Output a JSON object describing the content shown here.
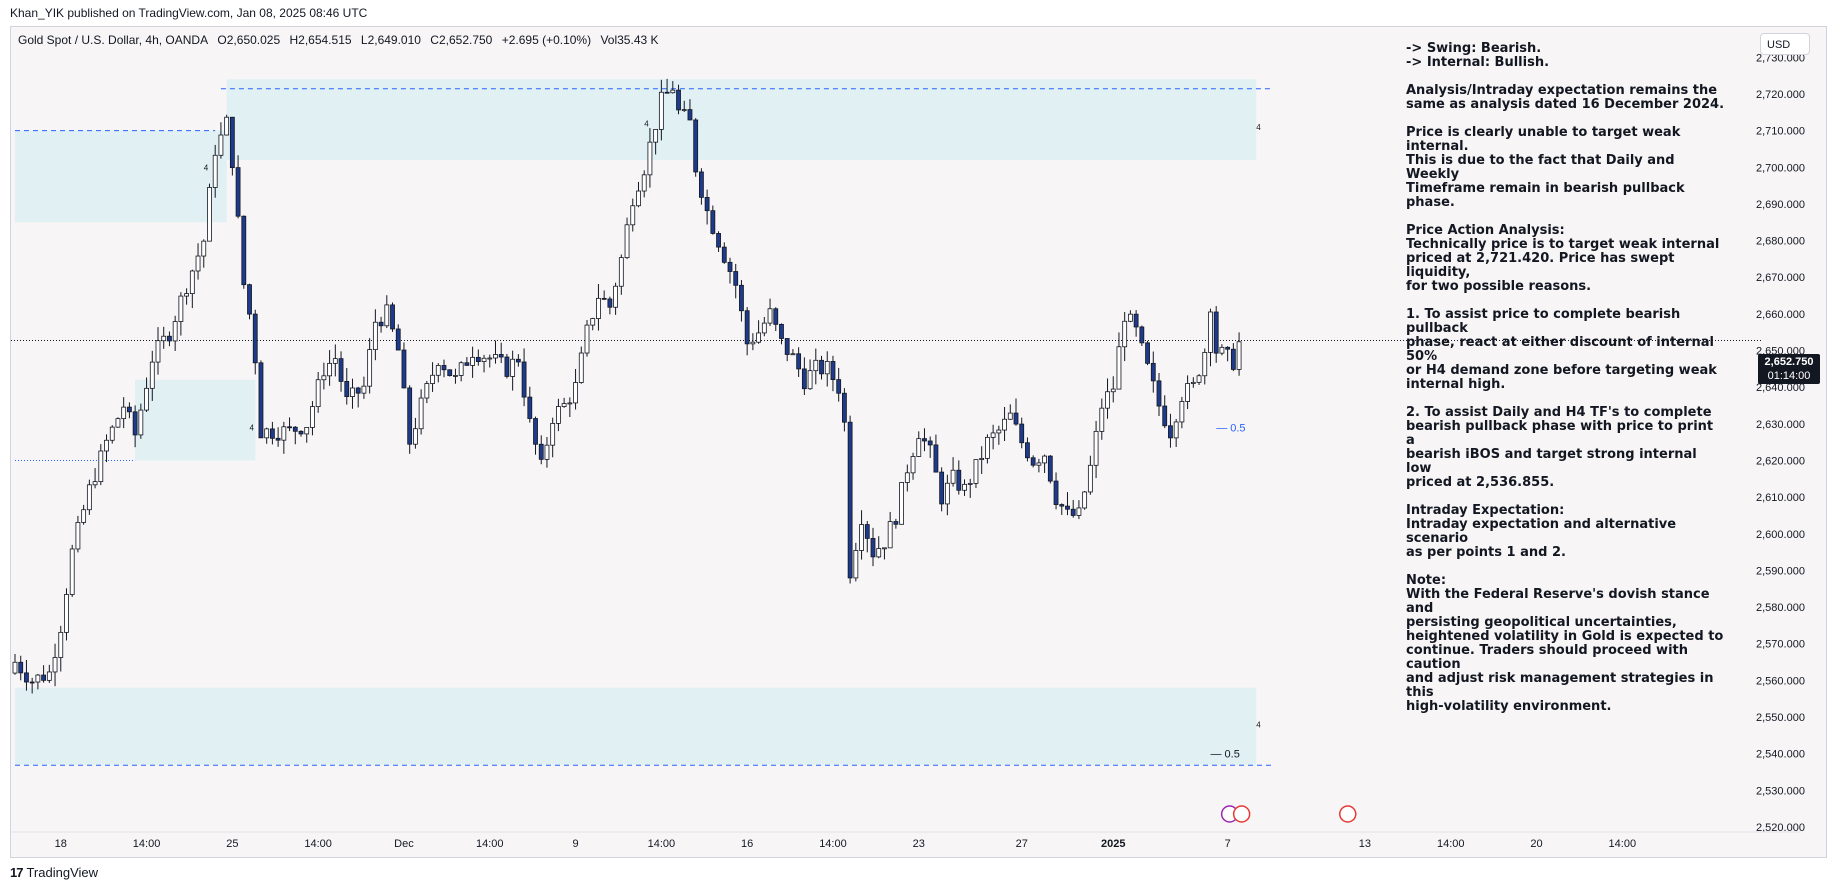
{
  "header": {
    "publisher": "Khan_YIK published on TradingView.com, Jan 08, 2025 08:46 UTC"
  },
  "legend": {
    "symbol": "Gold Spot / U.S. Dollar, 4h, OANDA",
    "open": "O2,650.025",
    "high": "H2,654.515",
    "low": "L2,649.010",
    "close": "C2,652.750",
    "change": "+2.695 (+0.10%)",
    "volume": "Vol35.43 K"
  },
  "currency_button": "USD",
  "last_price": {
    "price": "2,652.750",
    "countdown": "01:14:00"
  },
  "annotation_lines": [
    [
      "-> Swing:  Bearish.",
      "-> Internal:  Bullish."
    ],
    [
      "Analysis/Intraday expectation remains the",
      "same as analysis dated 16 December 2024."
    ],
    [
      "Price is clearly unable to target weak internal.",
      "This is due to the fact that Daily and Weekly",
      "Timeframe remain in bearish pullback phase."
    ],
    [
      "Price Action Analysis:",
      "Technically price is to target weak internal",
      "priced at 2,721.420. Price has swept",
      "liquidity,",
      "for two possible reasons."
    ],
    [
      "1.  To assist price to complete bearish pullback",
      "phase, react at either discount of internal 50%",
      "or H4 demand zone before targeting weak",
      "internal high."
    ],
    [
      "2.  To assist Daily and H4 TF's to complete",
      "bearish pullback phase with price to print a",
      "bearish iBOS and target strong internal low",
      "priced at  2,536.855."
    ],
    [
      "Intraday Expectation:",
      "Intraday expectation and alternative scenario",
      "as per points 1 and 2."
    ],
    [
      "Note:",
      "With the Federal Reserve's dovish stance and",
      "persisting geopolitical uncertainties,",
      "heightened volatility in Gold is expected to",
      "continue. Traders should proceed with caution",
      "and adjust risk management strategies in this",
      "high-volatility environment."
    ]
  ],
  "footer": {
    "brand": "TradingView",
    "logo_text": "17"
  },
  "colors": {
    "bull": "#ffffff",
    "bear": "#1e3a8a",
    "wick": "#131722",
    "zone": "#dceff2",
    "dashed": "#2962ff"
  },
  "chart_data": {
    "type": "candlestick",
    "title": "Gold Spot / U.S. Dollar, 4h, OANDA",
    "ylim": [
      2520,
      2735
    ],
    "y_ticks": [
      "2,520.000",
      "2,530.000",
      "2,540.000",
      "2,550.000",
      "2,560.000",
      "2,570.000",
      "2,580.000",
      "2,590.000",
      "2,600.000",
      "2,610.000",
      "2,620.000",
      "2,630.000",
      "2,640.000",
      "2,650.000",
      "2,660.000",
      "2,670.000",
      "2,680.000",
      "2,690.000",
      "2,700.000",
      "2,710.000",
      "2,720.000",
      "2,730.000"
    ],
    "x_ticks": [
      {
        "label": "18",
        "index": 8
      },
      {
        "label": "14:00",
        "index": 23
      },
      {
        "label": "25",
        "index": 38
      },
      {
        "label": "14:00",
        "index": 53
      },
      {
        "label": "Dec",
        "index": 68
      },
      {
        "label": "14:00",
        "index": 83
      },
      {
        "label": "9",
        "index": 98
      },
      {
        "label": "14:00",
        "index": 113
      },
      {
        "label": "16",
        "index": 128
      },
      {
        "label": "14:00",
        "index": 143
      },
      {
        "label": "23",
        "index": 158
      },
      {
        "label": "27",
        "index": 176
      },
      {
        "label": "2025",
        "index": 192
      },
      {
        "label": "7",
        "index": 212
      },
      {
        "label": "13",
        "index": 236
      },
      {
        "label": "14:00",
        "index": 251
      },
      {
        "label": "20",
        "index": 266
      },
      {
        "label": "14:00",
        "index": 281
      }
    ],
    "total_slots": 295,
    "anchors": [
      [
        0,
        2565
      ],
      [
        3,
        2560
      ],
      [
        6,
        2562
      ],
      [
        8,
        2575
      ],
      [
        10,
        2595
      ],
      [
        13,
        2612
      ],
      [
        16,
        2625
      ],
      [
        19,
        2635
      ],
      [
        21,
        2627
      ],
      [
        24,
        2648
      ],
      [
        27,
        2655
      ],
      [
        30,
        2668
      ],
      [
        33,
        2680
      ],
      [
        35,
        2705
      ],
      [
        36,
        2708
      ],
      [
        37,
        2712
      ],
      [
        38,
        2702
      ],
      [
        40,
        2668
      ],
      [
        41,
        2660
      ],
      [
        42,
        2648
      ],
      [
        43,
        2628
      ],
      [
        45,
        2628
      ],
      [
        48,
        2628
      ],
      [
        51,
        2630
      ],
      [
        54,
        2645
      ],
      [
        56,
        2648
      ],
      [
        58,
        2636
      ],
      [
        61,
        2640
      ],
      [
        63,
        2658
      ],
      [
        65,
        2660
      ],
      [
        67,
        2650
      ],
      [
        69,
        2625
      ],
      [
        71,
        2635
      ],
      [
        74,
        2648
      ],
      [
        77,
        2642
      ],
      [
        80,
        2650
      ],
      [
        83,
        2648
      ],
      [
        86,
        2645
      ],
      [
        88,
        2648
      ],
      [
        90,
        2630
      ],
      [
        92,
        2618
      ],
      [
        94,
        2632
      ],
      [
        96,
        2635
      ],
      [
        98,
        2640
      ],
      [
        100,
        2655
      ],
      [
        102,
        2665
      ],
      [
        104,
        2662
      ],
      [
        106,
        2675
      ],
      [
        108,
        2692
      ],
      [
        110,
        2700
      ],
      [
        113,
        2718
      ],
      [
        115,
        2722
      ],
      [
        116,
        2715
      ],
      [
        118,
        2712
      ],
      [
        119,
        2700
      ],
      [
        121,
        2688
      ],
      [
        123,
        2680
      ],
      [
        126,
        2668
      ],
      [
        128,
        2652
      ],
      [
        130,
        2655
      ],
      [
        132,
        2660
      ],
      [
        134,
        2652
      ],
      [
        136,
        2648
      ],
      [
        138,
        2642
      ],
      [
        140,
        2645
      ],
      [
        142,
        2645
      ],
      [
        144,
        2640
      ],
      [
        145,
        2630
      ],
      [
        146,
        2590
      ],
      [
        148,
        2605
      ],
      [
        150,
        2595
      ],
      [
        152,
        2598
      ],
      [
        154,
        2605
      ],
      [
        156,
        2618
      ],
      [
        158,
        2628
      ],
      [
        160,
        2622
      ],
      [
        162,
        2610
      ],
      [
        164,
        2615
      ],
      [
        166,
        2612
      ],
      [
        168,
        2618
      ],
      [
        170,
        2625
      ],
      [
        172,
        2628
      ],
      [
        174,
        2632
      ],
      [
        176,
        2625
      ],
      [
        178,
        2620
      ],
      [
        180,
        2622
      ],
      [
        182,
        2610
      ],
      [
        184,
        2605
      ],
      [
        186,
        2605
      ],
      [
        188,
        2618
      ],
      [
        190,
        2635
      ],
      [
        192,
        2640
      ],
      [
        194,
        2660
      ],
      [
        196,
        2655
      ],
      [
        198,
        2645
      ],
      [
        200,
        2635
      ],
      [
        202,
        2628
      ],
      [
        204,
        2638
      ],
      [
        206,
        2640
      ],
      [
        208,
        2650
      ],
      [
        209,
        2663
      ],
      [
        210,
        2650
      ],
      [
        212,
        2648
      ],
      [
        213,
        2647
      ],
      [
        214,
        2652
      ]
    ],
    "last_price": 2652.75,
    "zones": [
      {
        "label": "supply zone",
        "y_top": 2710,
        "y_bottom": 2685,
        "x_start": 0,
        "x_end": 37
      },
      {
        "label": "supply zone",
        "y_top": 2724,
        "y_bottom": 2702,
        "x_start": 37,
        "x_end": 217
      },
      {
        "label": "demand zone",
        "y_top": 2642,
        "y_bottom": 2620,
        "x_start": 21,
        "x_end": 42
      },
      {
        "label": "demand zone",
        "y_top": 2558,
        "y_bottom": 2537,
        "x_start": 0,
        "x_end": 217
      }
    ],
    "dashed_lines": [
      {
        "y": 2710,
        "x_start": 0,
        "x_end": 35,
        "style": "dashed"
      },
      {
        "y": 2721.42,
        "x_start": 36,
        "x_end": 220,
        "style": "dashed"
      },
      {
        "y": 2620,
        "x_start": 0,
        "x_end": 21,
        "style": "dotted"
      },
      {
        "y": 2536.855,
        "x_start": 0,
        "x_end": 220,
        "style": "dashed"
      }
    ],
    "level_labels": [
      {
        "text": "— 0.5",
        "y": 2629,
        "x": 210
      },
      {
        "text": "— 0.5",
        "y": 2540,
        "x": 209
      }
    ],
    "small_marks": [
      {
        "text": "4",
        "y": 2700,
        "x": 33
      },
      {
        "text": "4",
        "y": 2712,
        "x": 110
      },
      {
        "text": "4",
        "y": 2711,
        "x": 217
      },
      {
        "text": "4",
        "y": 2629,
        "x": 41
      },
      {
        "text": "4",
        "y": 2548,
        "x": 217
      }
    ]
  }
}
